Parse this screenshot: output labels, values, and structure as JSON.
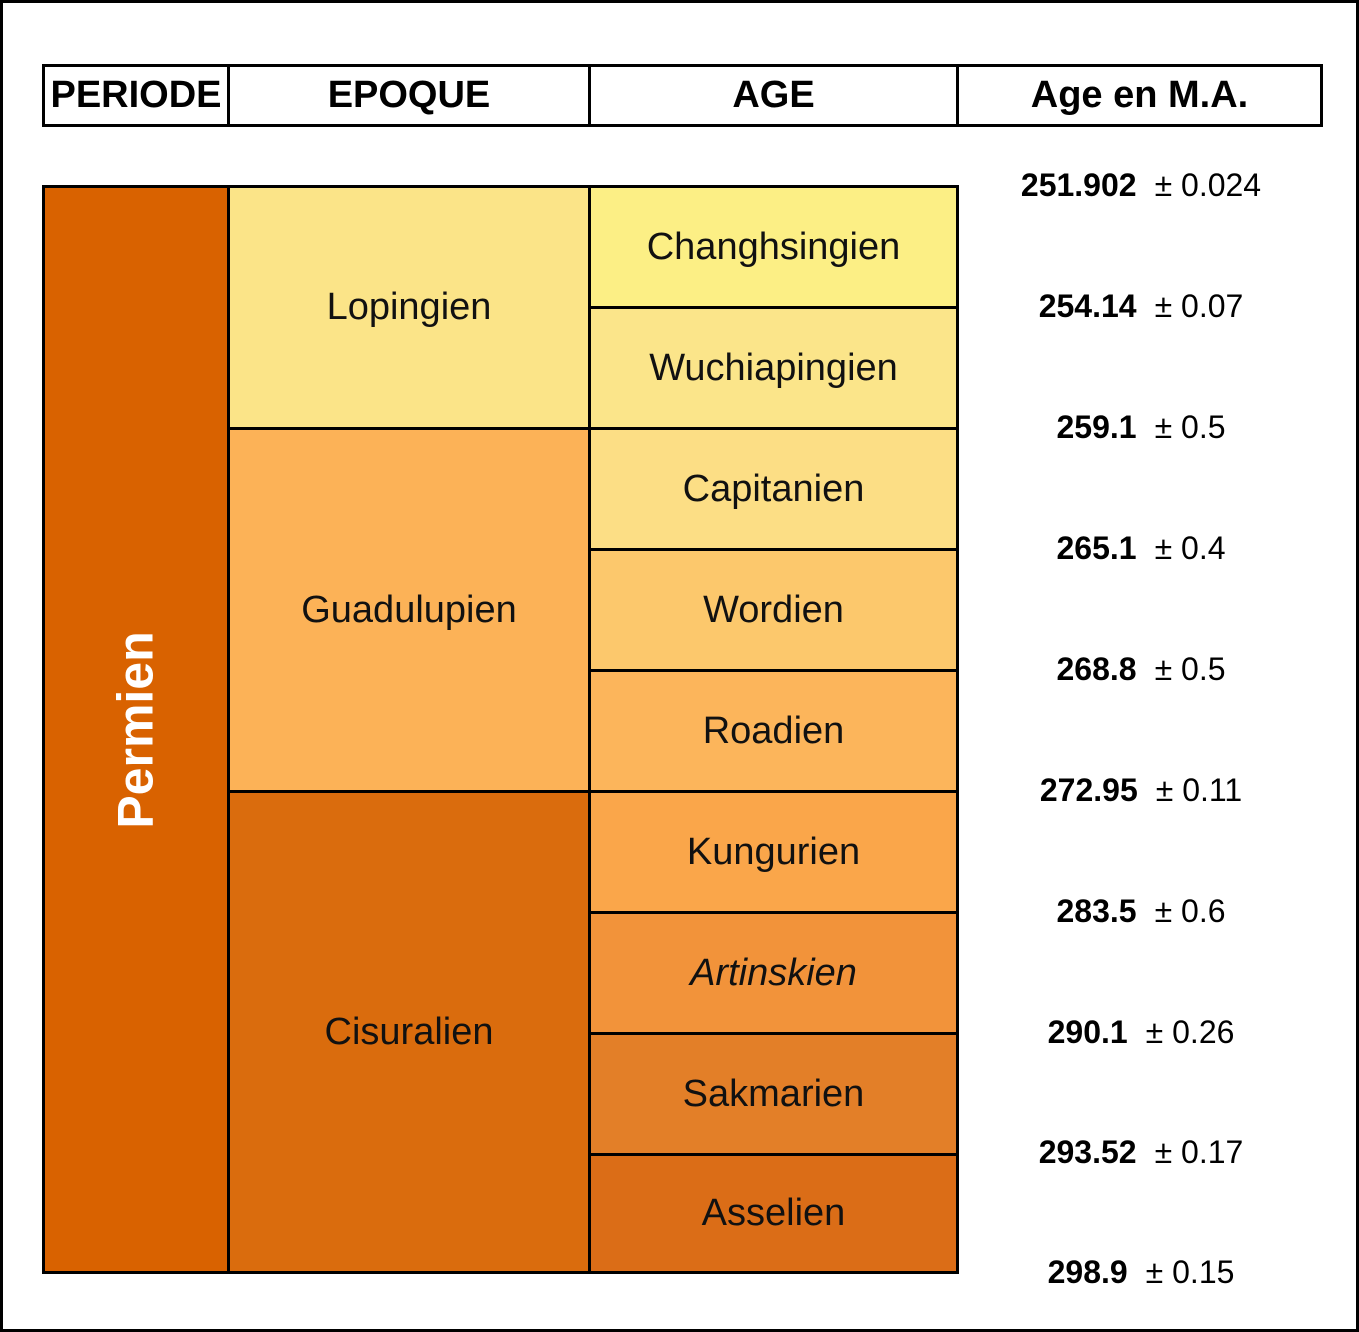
{
  "headers": {
    "periode": "PERIODE",
    "epoque": "EPOQUE",
    "age": "AGE",
    "age_ma": "Age en M.A."
  },
  "period": {
    "name": "Permien",
    "color": "#D96200"
  },
  "epochs": [
    {
      "name": "Lopingien",
      "color": "#FBE488"
    },
    {
      "name": "Guadulupien",
      "color": "#FCB257"
    },
    {
      "name": "Cisuralien",
      "color": "#DA6C0D"
    }
  ],
  "ages": [
    {
      "name": "Changhsingien",
      "color": "#FCEF85",
      "italic": false
    },
    {
      "name": "Wuchiapingien",
      "color": "#FBE58A",
      "italic": false
    },
    {
      "name": "Capitanien",
      "color": "#FCDE85",
      "italic": false
    },
    {
      "name": "Wordien",
      "color": "#FCC86C",
      "italic": false
    },
    {
      "name": "Roadien",
      "color": "#FCB55B",
      "italic": false
    },
    {
      "name": "Kungurien",
      "color": "#FAA64A",
      "italic": false
    },
    {
      "name": "Artinskien",
      "color": "#F2933A",
      "italic": true
    },
    {
      "name": "Sakmarien",
      "color": "#E37F28",
      "italic": false
    },
    {
      "name": "Asselien",
      "color": "#DB6D17",
      "italic": false
    }
  ],
  "boundaries": [
    {
      "value": "251.902",
      "uncertainty": "± 0.024"
    },
    {
      "value": "254.14",
      "uncertainty": "± 0.07"
    },
    {
      "value": "259.1",
      "uncertainty": "± 0.5"
    },
    {
      "value": "265.1",
      "uncertainty": "± 0.4"
    },
    {
      "value": "268.8",
      "uncertainty": "± 0.5"
    },
    {
      "value": "272.95",
      "uncertainty": "± 0.11"
    },
    {
      "value": "283.5",
      "uncertainty": "± 0.6"
    },
    {
      "value": "290.1",
      "uncertainty": "± 0.26"
    },
    {
      "value": "293.52",
      "uncertainty": "± 0.17"
    },
    {
      "value": "298.9",
      "uncertainty": "± 0.15"
    }
  ]
}
